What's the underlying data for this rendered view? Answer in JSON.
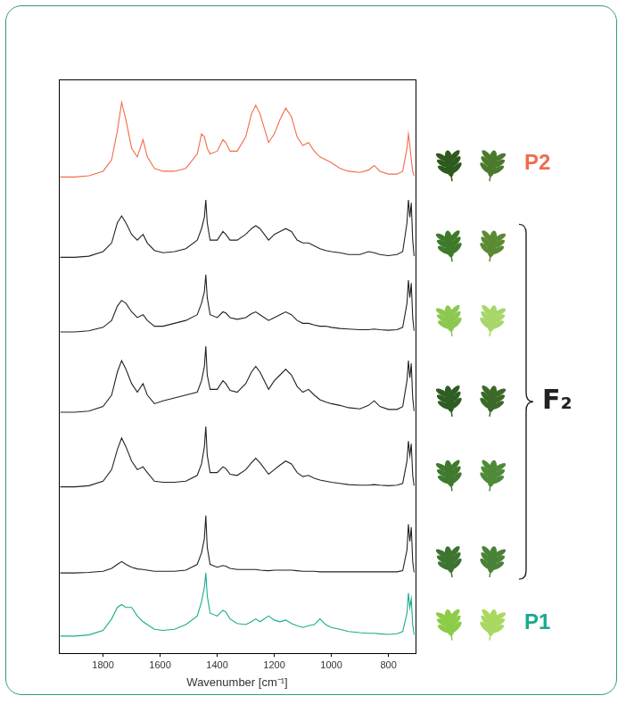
{
  "chart_data": {
    "type": "line",
    "x_label": "Wavenumber [cm⁻¹]",
    "x": [
      1950,
      1900,
      1850,
      1800,
      1770,
      1750,
      1735,
      1720,
      1700,
      1680,
      1660,
      1645,
      1620,
      1590,
      1550,
      1510,
      1470,
      1455,
      1445,
      1440,
      1435,
      1425,
      1400,
      1380,
      1370,
      1355,
      1330,
      1300,
      1280,
      1265,
      1250,
      1220,
      1200,
      1180,
      1160,
      1140,
      1120,
      1100,
      1080,
      1060,
      1040,
      1020,
      1000,
      970,
      940,
      900,
      870,
      850,
      830,
      800,
      770,
      750,
      735,
      730,
      725,
      720,
      715,
      710
    ],
    "xlim": [
      1955,
      705
    ],
    "xticks": [
      1800,
      1600,
      1400,
      1200,
      1000,
      800
    ],
    "ylim": [
      0,
      10
    ],
    "tick_labels": "x",
    "grid": false,
    "legend": "right",
    "series": [
      {
        "name": "P2",
        "color": "#f26b4a",
        "values": [
          8.3,
          8.3,
          8.32,
          8.4,
          8.6,
          9.1,
          9.6,
          9.3,
          8.8,
          8.65,
          8.95,
          8.65,
          8.45,
          8.4,
          8.4,
          8.45,
          8.7,
          9.05,
          9.0,
          8.9,
          8.8,
          8.7,
          8.75,
          8.95,
          8.9,
          8.75,
          8.75,
          9.0,
          9.4,
          9.55,
          9.4,
          8.9,
          9.05,
          9.3,
          9.5,
          9.35,
          9.0,
          8.85,
          8.9,
          8.75,
          8.65,
          8.6,
          8.55,
          8.45,
          8.4,
          8.38,
          8.42,
          8.5,
          8.4,
          8.35,
          8.35,
          8.4,
          8.8,
          9.05,
          8.85,
          8.6,
          8.4,
          8.32
        ]
      },
      {
        "name": "F₂",
        "color": "#222222",
        "values": [
          6.9,
          6.9,
          6.92,
          7.0,
          7.15,
          7.5,
          7.62,
          7.5,
          7.3,
          7.2,
          7.3,
          7.15,
          7.02,
          6.98,
          7.0,
          7.05,
          7.2,
          7.4,
          7.6,
          7.9,
          7.5,
          7.2,
          7.2,
          7.35,
          7.3,
          7.2,
          7.2,
          7.3,
          7.4,
          7.45,
          7.4,
          7.2,
          7.3,
          7.35,
          7.4,
          7.35,
          7.2,
          7.15,
          7.15,
          7.1,
          7.05,
          7.02,
          7.0,
          6.98,
          6.95,
          6.95,
          7.0,
          6.98,
          6.95,
          6.93,
          6.95,
          7.0,
          7.5,
          7.9,
          7.6,
          7.85,
          7.2,
          6.92
        ]
      },
      {
        "name": "F₂",
        "color": "#222222",
        "values": [
          5.6,
          5.6,
          5.62,
          5.68,
          5.8,
          6.05,
          6.15,
          6.1,
          5.95,
          5.85,
          5.9,
          5.8,
          5.7,
          5.7,
          5.75,
          5.8,
          5.9,
          6.1,
          6.3,
          6.6,
          6.2,
          5.9,
          5.85,
          5.95,
          5.93,
          5.85,
          5.82,
          5.85,
          5.92,
          5.95,
          5.9,
          5.8,
          5.85,
          5.9,
          5.95,
          5.9,
          5.8,
          5.75,
          5.75,
          5.72,
          5.7,
          5.7,
          5.68,
          5.66,
          5.65,
          5.64,
          5.64,
          5.65,
          5.64,
          5.63,
          5.64,
          5.68,
          6.1,
          6.5,
          6.2,
          6.45,
          5.85,
          5.62
        ]
      },
      {
        "name": "F₂",
        "color": "#222222",
        "values": [
          4.2,
          4.2,
          4.22,
          4.3,
          4.5,
          4.9,
          5.1,
          4.95,
          4.7,
          4.55,
          4.7,
          4.5,
          4.35,
          4.4,
          4.45,
          4.5,
          4.55,
          4.75,
          5.0,
          5.35,
          4.85,
          4.6,
          4.6,
          4.75,
          4.7,
          4.58,
          4.55,
          4.7,
          4.9,
          5.0,
          4.9,
          4.6,
          4.75,
          4.85,
          4.95,
          4.85,
          4.65,
          4.55,
          4.6,
          4.5,
          4.42,
          4.38,
          4.35,
          4.32,
          4.28,
          4.26,
          4.32,
          4.4,
          4.3,
          4.25,
          4.25,
          4.3,
          4.75,
          5.1,
          4.8,
          5.05,
          4.45,
          4.22
        ]
      },
      {
        "name": "F₂",
        "color": "#222222",
        "values": [
          2.9,
          2.9,
          2.92,
          3.0,
          3.2,
          3.55,
          3.75,
          3.6,
          3.35,
          3.2,
          3.25,
          3.15,
          3.0,
          2.98,
          2.98,
          3.0,
          3.1,
          3.3,
          3.6,
          3.95,
          3.45,
          3.15,
          3.15,
          3.25,
          3.22,
          3.12,
          3.1,
          3.2,
          3.32,
          3.4,
          3.32,
          3.12,
          3.2,
          3.28,
          3.35,
          3.3,
          3.15,
          3.08,
          3.1,
          3.05,
          3.02,
          3.0,
          2.98,
          2.96,
          2.94,
          2.93,
          2.93,
          2.94,
          2.93,
          2.92,
          2.93,
          2.96,
          3.35,
          3.7,
          3.45,
          3.65,
          3.1,
          2.92
        ]
      },
      {
        "name": "F₂",
        "color": "#222222",
        "values": [
          1.4,
          1.4,
          1.41,
          1.43,
          1.48,
          1.55,
          1.6,
          1.55,
          1.5,
          1.47,
          1.46,
          1.45,
          1.43,
          1.43,
          1.43,
          1.45,
          1.55,
          1.75,
          2.0,
          2.4,
          1.85,
          1.55,
          1.5,
          1.53,
          1.52,
          1.48,
          1.46,
          1.46,
          1.46,
          1.46,
          1.45,
          1.44,
          1.45,
          1.45,
          1.45,
          1.45,
          1.44,
          1.43,
          1.43,
          1.43,
          1.42,
          1.42,
          1.42,
          1.42,
          1.42,
          1.42,
          1.42,
          1.42,
          1.42,
          1.42,
          1.42,
          1.44,
          1.8,
          2.25,
          1.95,
          2.2,
          1.6,
          1.41
        ]
      },
      {
        "name": "P1",
        "color": "#1aaa8c",
        "values": [
          0.3,
          0.3,
          0.32,
          0.4,
          0.6,
          0.8,
          0.85,
          0.8,
          0.8,
          0.65,
          0.55,
          0.5,
          0.42,
          0.4,
          0.42,
          0.5,
          0.65,
          0.9,
          1.15,
          1.4,
          1.0,
          0.7,
          0.65,
          0.75,
          0.72,
          0.6,
          0.52,
          0.5,
          0.55,
          0.6,
          0.55,
          0.65,
          0.58,
          0.55,
          0.58,
          0.52,
          0.48,
          0.45,
          0.48,
          0.5,
          0.6,
          0.5,
          0.45,
          0.42,
          0.38,
          0.36,
          0.35,
          0.35,
          0.34,
          0.33,
          0.34,
          0.38,
          0.7,
          1.05,
          0.8,
          0.95,
          0.5,
          0.32
        ]
      }
    ]
  }
}
